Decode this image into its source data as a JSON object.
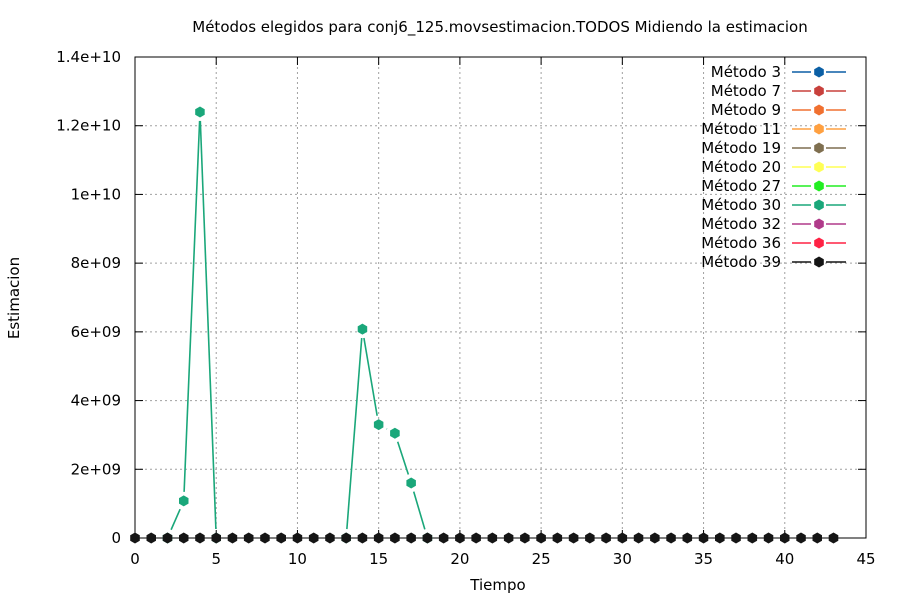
{
  "chart_data": {
    "type": "line",
    "title": "Métodos elegidos para conj6_125.movsestimacion.TODOS Midiendo la estimacion",
    "xlabel": "Tiempo",
    "ylabel": "Estimacion",
    "xlim": [
      0,
      45
    ],
    "ylim": [
      0,
      14000000000
    ],
    "x_ticks": [
      0,
      5,
      10,
      15,
      20,
      25,
      30,
      35,
      40,
      45
    ],
    "y_ticks": [
      0,
      2000000000,
      4000000000,
      6000000000,
      8000000000,
      10000000000,
      12000000000,
      14000000000
    ],
    "x_tick_labels": [
      "0",
      "5",
      "10",
      "15",
      "20",
      "25",
      "30",
      "35",
      "40",
      "45"
    ],
    "y_tick_labels": [
      "0",
      "2e+09",
      "4e+09",
      "6e+09",
      "8e+09",
      "1e+10",
      "1.2e+10",
      "1.4e+10"
    ],
    "grid": true,
    "legend_position": "top-right",
    "series": [
      {
        "name": "Método 3",
        "color": "#0b5fa5",
        "points": []
      },
      {
        "name": "Método 7",
        "color": "#c8403c",
        "points": []
      },
      {
        "name": "Método 9",
        "color": "#f07030",
        "points": []
      },
      {
        "name": "Método 11",
        "color": "#ffa040",
        "points": []
      },
      {
        "name": "Método 19",
        "color": "#7f6f50",
        "points": []
      },
      {
        "name": "Método 20",
        "color": "#ffff55",
        "points": []
      },
      {
        "name": "Método 27",
        "color": "#22ee22",
        "points": []
      },
      {
        "name": "Método 30",
        "color": "#1aa77a",
        "points": [
          [
            2,
            0
          ],
          [
            3,
            1080000000
          ],
          [
            4,
            12400000000
          ],
          [
            5,
            0
          ],
          [
            13,
            0
          ],
          [
            14,
            6080000000
          ],
          [
            15,
            3300000000
          ],
          [
            16,
            3050000000
          ],
          [
            17,
            1600000000
          ],
          [
            18,
            0
          ]
        ]
      },
      {
        "name": "Método 32",
        "color": "#b03a8a",
        "points": []
      },
      {
        "name": "Método 36",
        "color": "#ff2244",
        "points": []
      },
      {
        "name": "Método 39",
        "color": "#151515",
        "points": [
          [
            0,
            0
          ],
          [
            1,
            0
          ],
          [
            2,
            0
          ],
          [
            3,
            0
          ],
          [
            4,
            0
          ],
          [
            5,
            0
          ],
          [
            6,
            0
          ],
          [
            7,
            0
          ],
          [
            8,
            0
          ],
          [
            9,
            0
          ],
          [
            10,
            0
          ],
          [
            11,
            0
          ],
          [
            12,
            0
          ],
          [
            13,
            0
          ],
          [
            14,
            0
          ],
          [
            15,
            0
          ],
          [
            16,
            0
          ],
          [
            17,
            0
          ],
          [
            18,
            0
          ],
          [
            19,
            0
          ],
          [
            20,
            0
          ],
          [
            21,
            0
          ],
          [
            22,
            0
          ],
          [
            23,
            0
          ],
          [
            24,
            0
          ],
          [
            25,
            0
          ],
          [
            26,
            0
          ],
          [
            27,
            0
          ],
          [
            28,
            0
          ],
          [
            29,
            0
          ],
          [
            30,
            0
          ],
          [
            31,
            0
          ],
          [
            32,
            0
          ],
          [
            33,
            0
          ],
          [
            34,
            0
          ],
          [
            35,
            0
          ],
          [
            36,
            0
          ],
          [
            37,
            0
          ],
          [
            38,
            0
          ],
          [
            39,
            0
          ],
          [
            40,
            0
          ],
          [
            41,
            0
          ],
          [
            42,
            0
          ],
          [
            43,
            0
          ]
        ]
      }
    ]
  }
}
